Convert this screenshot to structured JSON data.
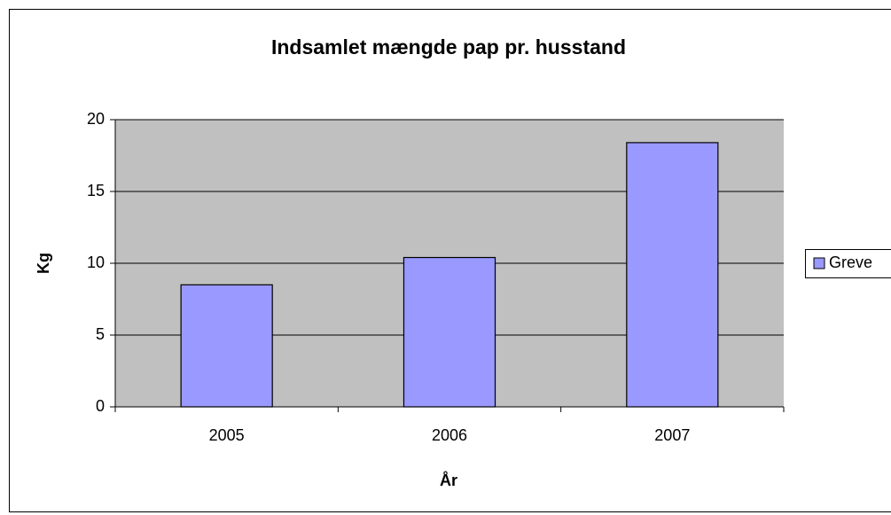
{
  "chart_data": {
    "type": "bar",
    "title": "Indsamlet mængde pap pr. husstand",
    "x_label": "År",
    "y_label": "Kg",
    "categories": [
      "2005",
      "2006",
      "2007"
    ],
    "series": [
      {
        "name": "Greve",
        "color": "#9999ff",
        "values": [
          8.5,
          10.4,
          18.4
        ]
      }
    ],
    "ylim": [
      0,
      20
    ],
    "yticks": [
      0,
      5,
      10,
      15,
      20
    ],
    "grid": true,
    "legend": "right"
  }
}
